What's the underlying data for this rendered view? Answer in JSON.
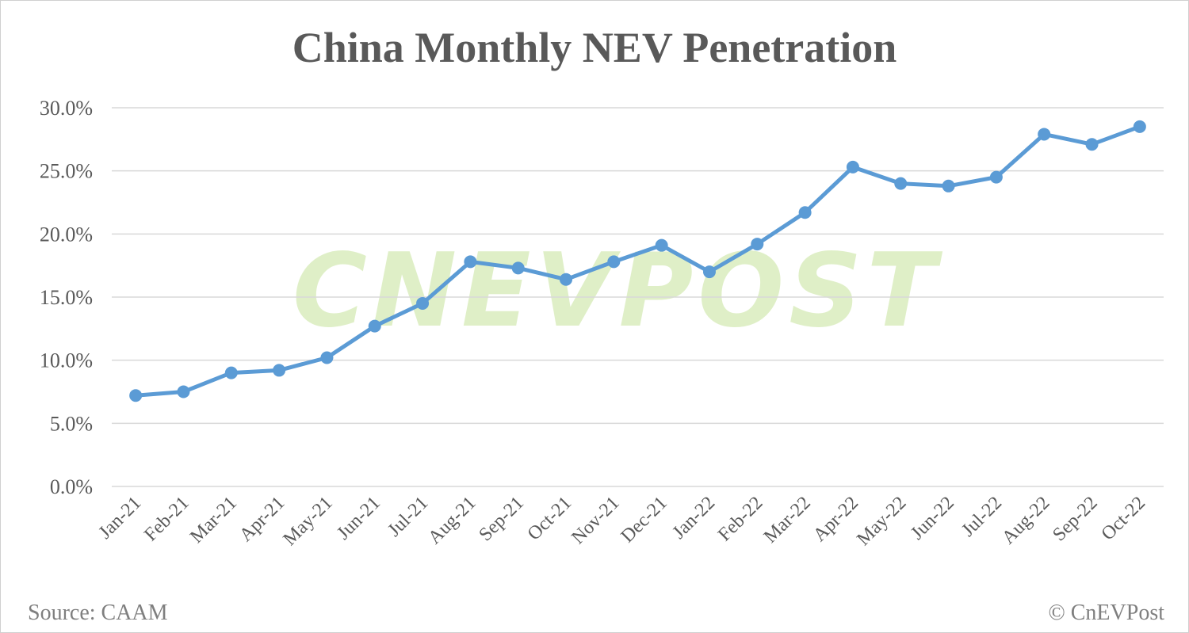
{
  "chart_data": {
    "type": "line",
    "title": "China Monthly NEV Penetration",
    "categories": [
      "Jan-21",
      "Feb-21",
      "Mar-21",
      "Apr-21",
      "May-21",
      "Jun-21",
      "Jul-21",
      "Aug-21",
      "Sep-21",
      "Oct-21",
      "Nov-21",
      "Dec-21",
      "Jan-22",
      "Feb-22",
      "Mar-22",
      "Apr-22",
      "May-22",
      "Jun-22",
      "Jul-22",
      "Aug-22",
      "Sep-22",
      "Oct-22"
    ],
    "series": [
      {
        "values": [
          7.2,
          7.5,
          9.0,
          9.2,
          10.2,
          12.7,
          14.5,
          17.8,
          17.3,
          16.4,
          17.8,
          19.1,
          17.0,
          19.2,
          21.7,
          25.3,
          24.0,
          23.8,
          24.5,
          27.9,
          27.1,
          28.5
        ],
        "color": "#5b9bd5"
      }
    ],
    "ylim": [
      0,
      30
    ],
    "yticks": [
      "0.0%",
      "5.0%",
      "10.0%",
      "15.0%",
      "20.0%",
      "25.0%",
      "30.0%"
    ],
    "grid": true,
    "xlabel": "",
    "ylabel": ""
  },
  "footer": {
    "source": "Source: CAAM",
    "copyright": "© CnEVPost"
  },
  "watermark": "CNEVPOST"
}
